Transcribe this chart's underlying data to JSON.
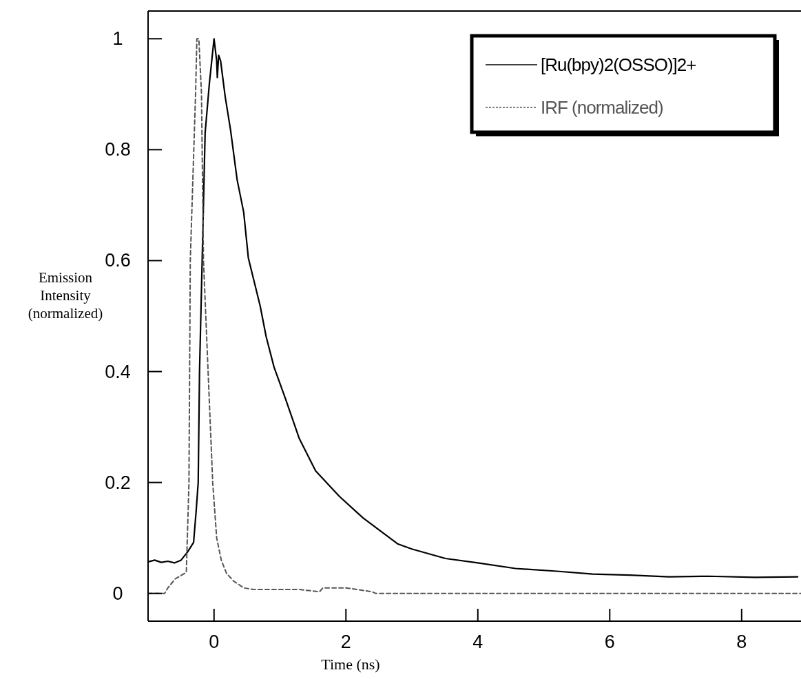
{
  "chart_data": {
    "type": "line",
    "xlabel": "Time (ns)",
    "ylabel": "Emission Intensity (normalized)",
    "xlim": [
      -1,
      8.9
    ],
    "ylim": [
      -0.05,
      1.05
    ],
    "xticks": [
      0,
      2,
      4,
      6,
      8
    ],
    "yticks": [
      0,
      0.2,
      0.4,
      0.6,
      0.8,
      1
    ],
    "grid": false,
    "legend": "top right",
    "marker": "none",
    "series": [
      {
        "name": "[Ru(bpy)2(OSSO)]2+",
        "color": "#000000",
        "line_style": "solid",
        "x": [
          -1,
          -0.9,
          -0.8,
          -0.7,
          -0.6,
          -0.5,
          -0.4,
          -0.31,
          -0.27,
          -0.24,
          -0.22,
          -0.18,
          -0.135,
          -0.07,
          0,
          0.04,
          0.05,
          0.07,
          0.1,
          0.17,
          0.25,
          0.35,
          0.45,
          0.52,
          0.7,
          0.79,
          0.91,
          1.08,
          1.29,
          1.54,
          1.9,
          2.26,
          2.79,
          3.0,
          3.51,
          4.0,
          4.57,
          5.2,
          5.74,
          6.3,
          6.9,
          7.5,
          8.2,
          8.85
        ],
        "values": [
          0.057,
          0.06,
          0.056,
          0.058,
          0.055,
          0.06,
          0.075,
          0.092,
          0.15,
          0.2,
          0.4,
          0.6,
          0.83,
          0.92,
          1.0,
          0.96,
          0.93,
          0.97,
          0.96,
          0.895,
          0.836,
          0.746,
          0.687,
          0.605,
          0.518,
          0.463,
          0.408,
          0.352,
          0.28,
          0.221,
          0.175,
          0.136,
          0.089,
          0.08,
          0.063,
          0.055,
          0.045,
          0.04,
          0.035,
          0.033,
          0.03,
          0.031,
          0.029,
          0.03
        ]
      },
      {
        "name": "IRF (normalized)",
        "color": "#555555",
        "line_style": "dashed",
        "x": [
          -1,
          -0.75,
          -0.7,
          -0.59,
          -0.42,
          -0.38,
          -0.36,
          -0.28,
          -0.26,
          -0.23,
          -0.19,
          -0.16,
          -0.09,
          -0.02,
          0.04,
          0.11,
          0.19,
          0.3,
          0.45,
          0.6,
          1.3,
          1.6,
          1.65,
          2.0,
          2.4,
          2.45,
          8.9
        ],
        "values": [
          0.0,
          0.0,
          0.01,
          0.026,
          0.038,
          0.2,
          0.6,
          0.9,
          1.0,
          1.0,
          0.9,
          0.6,
          0.4,
          0.2,
          0.1,
          0.06,
          0.036,
          0.022,
          0.01,
          0.007,
          0.007,
          0.003,
          0.01,
          0.01,
          0.003,
          0.0,
          0.0
        ]
      }
    ]
  }
}
